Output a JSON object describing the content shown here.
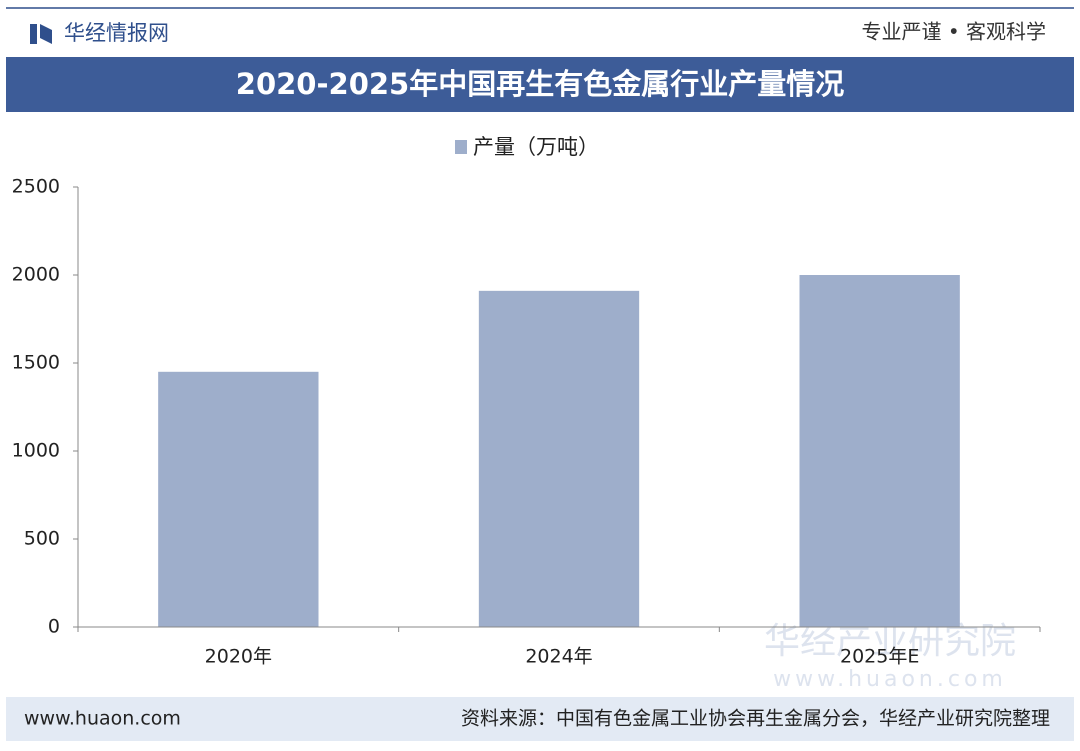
{
  "header": {
    "brand": "华经情报网",
    "slogan": "专业严谨 • 客观科学"
  },
  "chart_data": {
    "type": "bar",
    "title": "2020-2025年中国再生有色金属行业产量情况",
    "categories": [
      "2020年",
      "2024年",
      "2025年E"
    ],
    "series": [
      {
        "name": "产量（万吨）",
        "color": "#9eaecb",
        "values": [
          1450,
          1910,
          2000
        ]
      }
    ],
    "ylim": [
      0,
      2500
    ],
    "yticks": [
      0,
      500,
      1000,
      1500,
      2000,
      2500
    ],
    "grid": false
  },
  "watermark": {
    "name": "华经产业研究院",
    "url": "www.huaon.com"
  },
  "footer": {
    "website": "www.huaon.com",
    "source": "资料来源：中国有色金属工业协会再生金属分会，华经产业研究院整理"
  }
}
